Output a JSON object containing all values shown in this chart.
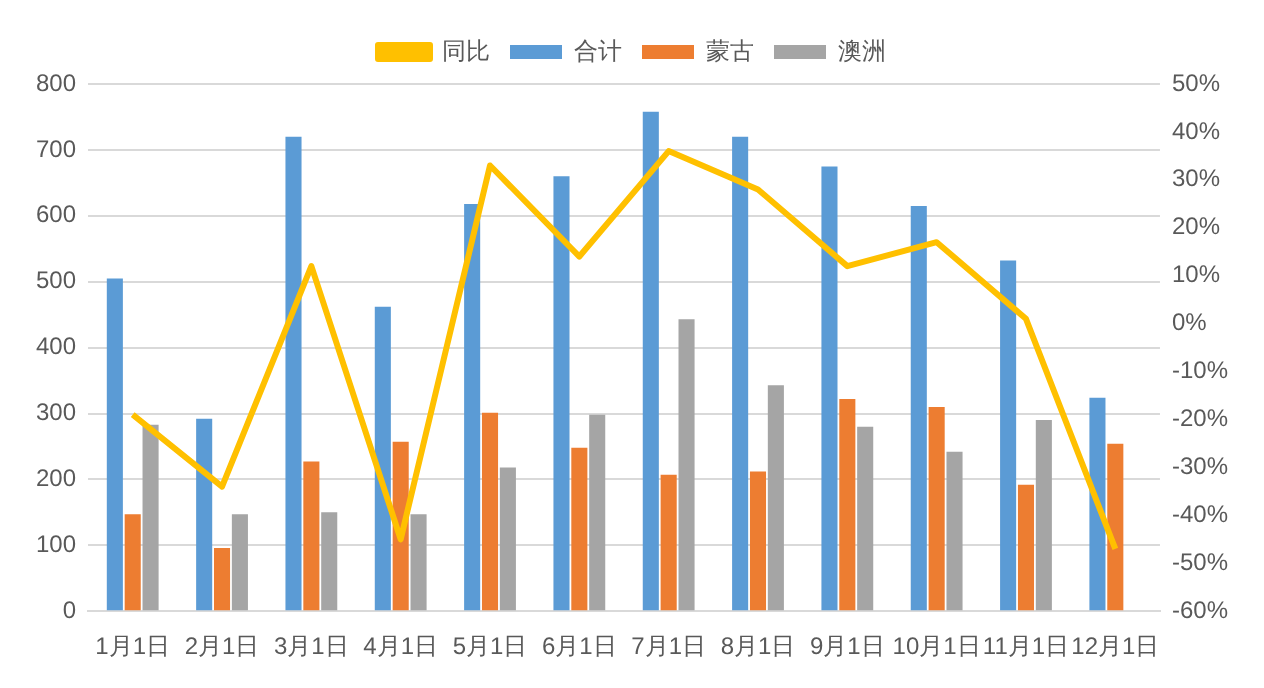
{
  "chart_data": {
    "type": "bar",
    "categories": [
      "1月1日",
      "2月1日",
      "3月1日",
      "4月1日",
      "5月1日",
      "6月1日",
      "7月1日",
      "8月1日",
      "9月1日",
      "10月1日",
      "11月1日",
      "12月1日"
    ],
    "series": [
      {
        "name": "合计",
        "color": "#5b9bd5",
        "values": [
          505,
          292,
          720,
          462,
          618,
          660,
          758,
          720,
          675,
          615,
          532,
          324
        ]
      },
      {
        "name": "蒙古",
        "color": "#ed7d31",
        "values": [
          147,
          96,
          227,
          257,
          301,
          248,
          207,
          212,
          322,
          310,
          192,
          254
        ]
      },
      {
        "name": "澳洲",
        "color": "#a5a5a5",
        "values": [
          283,
          147,
          150,
          147,
          218,
          298,
          443,
          343,
          280,
          242,
          290,
          null
        ]
      },
      {
        "name": "同比",
        "type": "line",
        "axis": "y2",
        "color": "#ffc000",
        "marker": "none",
        "values": [
          -19,
          -34,
          12,
          -45,
          33,
          14,
          36,
          28,
          12,
          17,
          1,
          -47
        ]
      }
    ],
    "ylim": [
      0,
      800
    ],
    "yticks": [
      0,
      100,
      200,
      300,
      400,
      500,
      600,
      700,
      800
    ],
    "y2lim": [
      -60,
      50
    ],
    "y2ticks": [
      {
        "value": -60,
        "label": "-60%"
      },
      {
        "value": -50,
        "label": "-50%"
      },
      {
        "value": -40,
        "label": "-40%"
      },
      {
        "value": -30,
        "label": "-30%"
      },
      {
        "value": -20,
        "label": "-20%"
      },
      {
        "value": -10,
        "label": "-10%"
      },
      {
        "value": 0,
        "label": "0%"
      },
      {
        "value": 10,
        "label": "10%"
      },
      {
        "value": 20,
        "label": "20%"
      },
      {
        "value": 30,
        "label": "30%"
      },
      {
        "value": 40,
        "label": "40%"
      },
      {
        "value": 50,
        "label": "50%"
      }
    ],
    "grid": "y",
    "legend": "top"
  }
}
